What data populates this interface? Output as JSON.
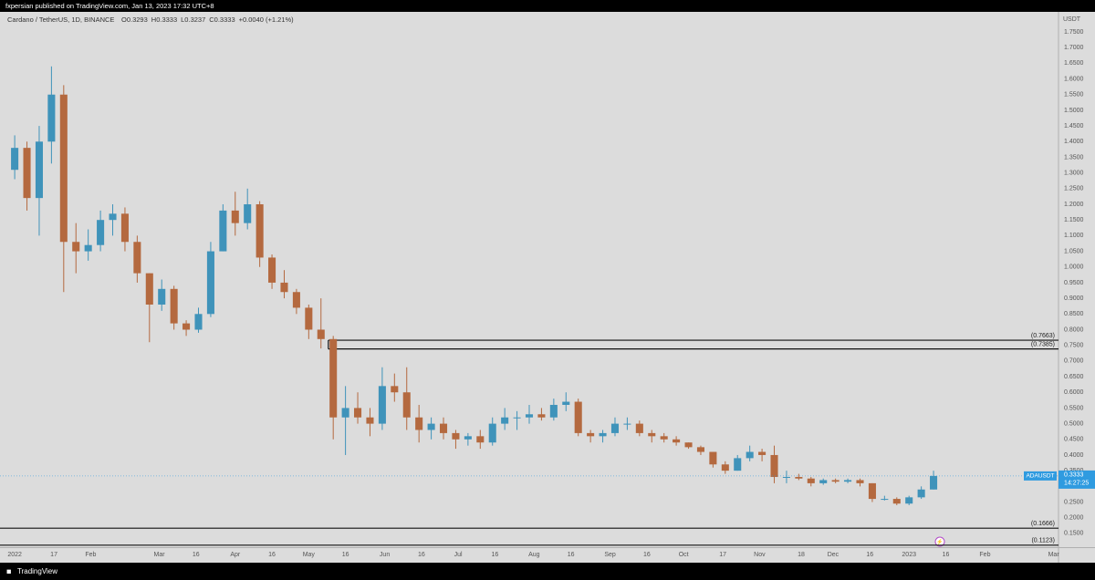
{
  "header": {
    "publisher": "fxpersian published on TradingView.com, Jan 13, 2023 17:32 UTC+8"
  },
  "footer": {
    "brand": "TradingView"
  },
  "chart_data": {
    "type": "candlestick",
    "title": "Cardano / TetherUS, 1D, BINANCE",
    "ohlc_header": [
      "O0.3293",
      "H0.3333",
      "L0.3237",
      "C0.3333",
      "+0.0040 (+1.21%)"
    ],
    "y_unit": "USDT",
    "symbol_tag": "ADAUSDT",
    "last_price": 0.3333,
    "countdown": "14:27:25",
    "up_color": "#3f93ba",
    "down_color": "#b4693f",
    "last_price_color": "#2f9be0",
    "grid": false,
    "xlim": [
      "2021-12-26",
      "2023-03-03"
    ],
    "ylim": [
      0.106,
      1.814
    ],
    "xticks": [
      {
        "value": "2022-01-01",
        "label": "2022"
      },
      {
        "value": "2022-01-17",
        "label": "17"
      },
      {
        "value": "2022-02-01",
        "label": "Feb"
      },
      {
        "value": "2022-03-01",
        "label": "Mar"
      },
      {
        "value": "2022-03-16",
        "label": "16"
      },
      {
        "value": "2022-04-01",
        "label": "Apr"
      },
      {
        "value": "2022-04-16",
        "label": "16"
      },
      {
        "value": "2022-05-01",
        "label": "May"
      },
      {
        "value": "2022-05-16",
        "label": "16"
      },
      {
        "value": "2022-06-01",
        "label": "Jun"
      },
      {
        "value": "2022-06-16",
        "label": "16"
      },
      {
        "value": "2022-07-01",
        "label": "Jul"
      },
      {
        "value": "2022-07-16",
        "label": "16"
      },
      {
        "value": "2022-08-01",
        "label": "Aug"
      },
      {
        "value": "2022-08-16",
        "label": "16"
      },
      {
        "value": "2022-09-01",
        "label": "Sep"
      },
      {
        "value": "2022-09-16",
        "label": "16"
      },
      {
        "value": "2022-10-01",
        "label": "Oct"
      },
      {
        "value": "2022-10-17",
        "label": "17"
      },
      {
        "value": "2022-11-01",
        "label": "Nov"
      },
      {
        "value": "2022-11-18",
        "label": "18"
      },
      {
        "value": "2022-12-01",
        "label": "Dec"
      },
      {
        "value": "2022-12-16",
        "label": "16"
      },
      {
        "value": "2023-01-01",
        "label": "2023"
      },
      {
        "value": "2023-01-16",
        "label": "16"
      },
      {
        "value": "2023-02-01",
        "label": "Feb"
      },
      {
        "value": "2023-03-01",
        "label": "Mar"
      }
    ],
    "yticks": [
      {
        "value": 0.15,
        "label": "0.1500"
      },
      {
        "value": 0.2,
        "label": "0.2000"
      },
      {
        "value": 0.25,
        "label": "0.2500"
      },
      {
        "value": 0.3,
        "label": "0.3000"
      },
      {
        "value": 0.35,
        "label": "0.3500"
      },
      {
        "value": 0.4,
        "label": "0.4000"
      },
      {
        "value": 0.45,
        "label": "0.4500"
      },
      {
        "value": 0.5,
        "label": "0.5000"
      },
      {
        "value": 0.55,
        "label": "0.5500"
      },
      {
        "value": 0.6,
        "label": "0.6000"
      },
      {
        "value": 0.65,
        "label": "0.6500"
      },
      {
        "value": 0.7,
        "label": "0.7000"
      },
      {
        "value": 0.75,
        "label": "0.7500"
      },
      {
        "value": 0.8,
        "label": "0.8000"
      },
      {
        "value": 0.85,
        "label": "0.8500"
      },
      {
        "value": 0.9,
        "label": "0.9000"
      },
      {
        "value": 0.95,
        "label": "0.9500"
      },
      {
        "value": 1.0,
        "label": "1.0000"
      },
      {
        "value": 1.05,
        "label": "1.0500"
      },
      {
        "value": 1.1,
        "label": "1.1000"
      },
      {
        "value": 1.15,
        "label": "1.1500"
      },
      {
        "value": 1.2,
        "label": "1.2000"
      },
      {
        "value": 1.25,
        "label": "1.2500"
      },
      {
        "value": 1.3,
        "label": "1.3000"
      },
      {
        "value": 1.35,
        "label": "1.3500"
      },
      {
        "value": 1.4,
        "label": "1.4000"
      },
      {
        "value": 1.45,
        "label": "1.4500"
      },
      {
        "value": 1.5,
        "label": "1.5000"
      },
      {
        "value": 1.55,
        "label": "1.5500"
      },
      {
        "value": 1.6,
        "label": "1.6000"
      },
      {
        "value": 1.65,
        "label": "1.6500"
      },
      {
        "value": 1.7,
        "label": "1.7000"
      },
      {
        "value": 1.75,
        "label": "1.7500"
      }
    ],
    "levels": [
      {
        "value": 0.7663,
        "label": "(0.7663)",
        "start": "2022-05-09"
      },
      {
        "value": 0.7385,
        "label": "(0.7385)",
        "start": "2022-05-09"
      },
      {
        "value": 0.1666,
        "label": "(0.1666)",
        "start": "2021-12-26"
      },
      {
        "value": 0.1123,
        "label": "(0.1123)",
        "start": "2021-12-26"
      }
    ],
    "x": [
      "2022-01-01",
      "2022-01-06",
      "2022-01-11",
      "2022-01-16",
      "2022-01-21",
      "2022-01-26",
      "2022-01-31",
      "2022-02-05",
      "2022-02-10",
      "2022-02-15",
      "2022-02-20",
      "2022-02-25",
      "2022-03-02",
      "2022-03-07",
      "2022-03-12",
      "2022-03-17",
      "2022-03-22",
      "2022-03-27",
      "2022-04-01",
      "2022-04-06",
      "2022-04-11",
      "2022-04-16",
      "2022-04-21",
      "2022-04-26",
      "2022-05-01",
      "2022-05-06",
      "2022-05-11",
      "2022-05-16",
      "2022-05-21",
      "2022-05-26",
      "2022-05-31",
      "2022-06-05",
      "2022-06-10",
      "2022-06-15",
      "2022-06-20",
      "2022-06-25",
      "2022-06-30",
      "2022-07-05",
      "2022-07-10",
      "2022-07-15",
      "2022-07-20",
      "2022-07-25",
      "2022-07-30",
      "2022-08-04",
      "2022-08-09",
      "2022-08-14",
      "2022-08-19",
      "2022-08-24",
      "2022-08-29",
      "2022-09-03",
      "2022-09-08",
      "2022-09-13",
      "2022-09-18",
      "2022-09-23",
      "2022-09-28",
      "2022-10-03",
      "2022-10-08",
      "2022-10-13",
      "2022-10-18",
      "2022-10-23",
      "2022-10-28",
      "2022-11-02",
      "2022-11-07",
      "2022-11-12",
      "2022-11-17",
      "2022-11-22",
      "2022-11-27",
      "2022-12-02",
      "2022-12-07",
      "2022-12-12",
      "2022-12-17",
      "2022-12-22",
      "2022-12-27",
      "2023-01-01",
      "2023-01-06",
      "2023-01-11"
    ],
    "open": [
      1.31,
      1.38,
      1.22,
      1.4,
      1.55,
      1.08,
      1.05,
      1.07,
      1.15,
      1.17,
      1.08,
      0.98,
      0.88,
      0.93,
      0.82,
      0.8,
      0.85,
      1.05,
      1.18,
      1.14,
      1.2,
      1.03,
      0.95,
      0.92,
      0.87,
      0.8,
      0.77,
      0.52,
      0.55,
      0.52,
      0.5,
      0.62,
      0.6,
      0.52,
      0.48,
      0.5,
      0.47,
      0.45,
      0.46,
      0.44,
      0.5,
      0.52,
      0.52,
      0.53,
      0.52,
      0.56,
      0.57,
      0.47,
      0.46,
      0.47,
      0.5,
      0.5,
      0.47,
      0.46,
      0.45,
      0.44,
      0.425,
      0.41,
      0.37,
      0.35,
      0.39,
      0.41,
      0.4,
      0.33,
      0.33,
      0.325,
      0.31,
      0.32,
      0.315,
      0.32,
      0.31,
      0.26,
      0.26,
      0.245,
      0.265,
      0.29
    ],
    "high": [
      1.42,
      1.4,
      1.45,
      1.64,
      1.58,
      1.14,
      1.12,
      1.18,
      1.2,
      1.19,
      1.1,
      0.98,
      0.96,
      0.94,
      0.83,
      0.87,
      1.08,
      1.2,
      1.24,
      1.25,
      1.21,
      1.04,
      0.99,
      0.93,
      0.88,
      0.9,
      0.78,
      0.62,
      0.6,
      0.55,
      0.68,
      0.66,
      0.68,
      0.56,
      0.52,
      0.52,
      0.48,
      0.47,
      0.48,
      0.52,
      0.55,
      0.54,
      0.56,
      0.55,
      0.58,
      0.6,
      0.58,
      0.48,
      0.48,
      0.52,
      0.52,
      0.51,
      0.48,
      0.47,
      0.46,
      0.44,
      0.43,
      0.41,
      0.38,
      0.4,
      0.43,
      0.42,
      0.43,
      0.35,
      0.34,
      0.33,
      0.325,
      0.325,
      0.325,
      0.325,
      0.31,
      0.27,
      0.265,
      0.27,
      0.3,
      0.35
    ],
    "low": [
      1.28,
      1.18,
      1.1,
      1.33,
      0.92,
      0.98,
      1.02,
      1.05,
      1.1,
      1.05,
      0.95,
      0.76,
      0.86,
      0.8,
      0.78,
      0.79,
      0.84,
      1.05,
      1.1,
      1.12,
      1.0,
      0.93,
      0.9,
      0.85,
      0.77,
      0.74,
      0.45,
      0.4,
      0.5,
      0.46,
      0.48,
      0.57,
      0.48,
      0.44,
      0.45,
      0.45,
      0.42,
      0.43,
      0.42,
      0.43,
      0.48,
      0.48,
      0.5,
      0.51,
      0.51,
      0.54,
      0.46,
      0.44,
      0.44,
      0.46,
      0.48,
      0.46,
      0.44,
      0.44,
      0.43,
      0.42,
      0.4,
      0.36,
      0.34,
      0.35,
      0.38,
      0.38,
      0.31,
      0.31,
      0.32,
      0.3,
      0.305,
      0.31,
      0.31,
      0.3,
      0.25,
      0.255,
      0.24,
      0.24,
      0.26,
      0.29
    ],
    "close": [
      1.38,
      1.22,
      1.4,
      1.55,
      1.08,
      1.05,
      1.07,
      1.15,
      1.17,
      1.08,
      0.98,
      0.88,
      0.93,
      0.82,
      0.8,
      0.85,
      1.05,
      1.18,
      1.14,
      1.2,
      1.03,
      0.95,
      0.92,
      0.87,
      0.8,
      0.77,
      0.52,
      0.55,
      0.52,
      0.5,
      0.62,
      0.6,
      0.52,
      0.48,
      0.5,
      0.47,
      0.45,
      0.46,
      0.44,
      0.5,
      0.52,
      0.52,
      0.53,
      0.52,
      0.56,
      0.57,
      0.47,
      0.46,
      0.47,
      0.5,
      0.5,
      0.47,
      0.46,
      0.45,
      0.44,
      0.425,
      0.41,
      0.37,
      0.35,
      0.39,
      0.41,
      0.4,
      0.33,
      0.33,
      0.325,
      0.31,
      0.32,
      0.315,
      0.32,
      0.31,
      0.26,
      0.26,
      0.245,
      0.265,
      0.29,
      0.3333
    ]
  }
}
